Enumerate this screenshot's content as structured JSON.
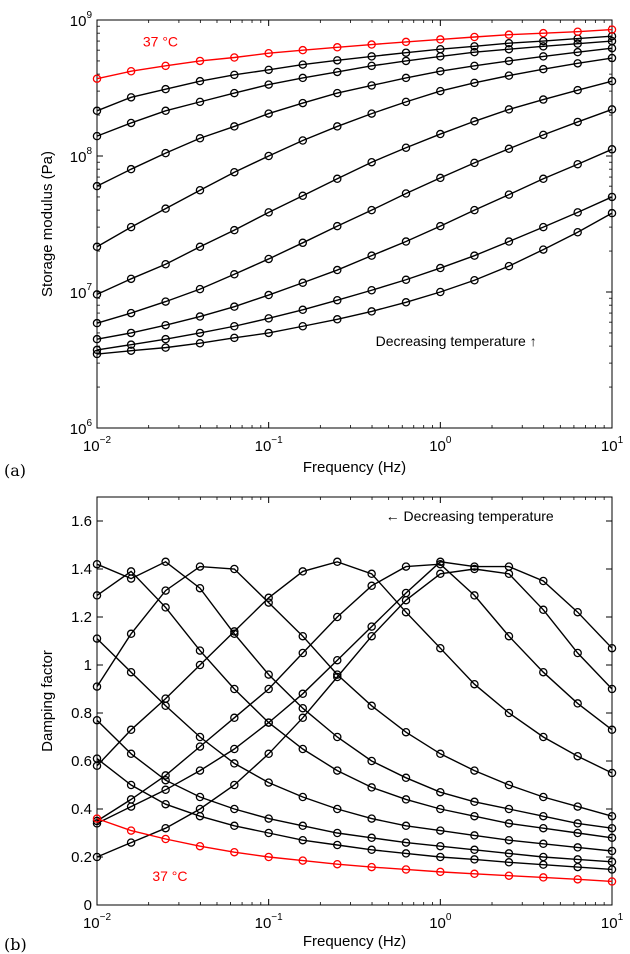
{
  "chart_data": [
    {
      "panel_label": "(a)",
      "type": "line",
      "xlabel": "Frequency (Hz)",
      "ylabel": "Storage modulus (Pa)",
      "xscale": "log",
      "yscale": "log",
      "xlim": [
        0.01,
        10
      ],
      "ylim": [
        1000000,
        1000000000
      ],
      "x_ticks": [
        {
          "value": 0.01,
          "base": "10",
          "exp": "−2"
        },
        {
          "value": 0.1,
          "base": "10",
          "exp": "−1"
        },
        {
          "value": 1,
          "base": "10",
          "exp": "0"
        },
        {
          "value": 10,
          "base": "10",
          "exp": "1"
        }
      ],
      "y_ticks": [
        {
          "value": 1000000,
          "base": "10",
          "exp": "6"
        },
        {
          "value": 10000000,
          "base": "10",
          "exp": "7"
        },
        {
          "value": 100000000,
          "base": "10",
          "exp": "8"
        },
        {
          "value": 1000000000,
          "base": "10",
          "exp": "9"
        }
      ],
      "grid": false,
      "marker": "circle",
      "x": [
        0.01,
        0.0158,
        0.0251,
        0.0398,
        0.0631,
        0.1,
        0.158,
        0.251,
        0.398,
        0.631,
        1.0,
        1.58,
        2.51,
        3.98,
        6.31,
        10.0
      ],
      "series": [
        {
          "color": "#ff0000",
          "values": [
            370000000.0,
            420000000.0,
            460000000.0,
            500000000.0,
            530000000.0,
            570000000.0,
            600000000.0,
            630000000.0,
            660000000.0,
            690000000.0,
            720000000.0,
            750000000.0,
            780000000.0,
            800000000.0,
            820000000.0,
            850000000.0
          ]
        },
        {
          "color": "#000000",
          "values": [
            215000000.0,
            270000000.0,
            310000000.0,
            355000000.0,
            395000000.0,
            430000000.0,
            470000000.0,
            505000000.0,
            540000000.0,
            575000000.0,
            610000000.0,
            640000000.0,
            675000000.0,
            700000000.0,
            730000000.0,
            760000000.0
          ]
        },
        {
          "color": "#000000",
          "values": [
            140000000.0,
            175000000.0,
            215000000.0,
            250000000.0,
            290000000.0,
            335000000.0,
            375000000.0,
            415000000.0,
            460000000.0,
            500000000.0,
            540000000.0,
            580000000.0,
            610000000.0,
            640000000.0,
            670000000.0,
            700000000.0
          ]
        },
        {
          "color": "#000000",
          "values": [
            60000000.0,
            80000000.0,
            105000000.0,
            135000000.0,
            165000000.0,
            205000000.0,
            245000000.0,
            290000000.0,
            330000000.0,
            375000000.0,
            420000000.0,
            460000000.0,
            500000000.0,
            540000000.0,
            580000000.0,
            620000000.0
          ]
        },
        {
          "color": "#000000",
          "values": [
            21500000.0,
            30000000.0,
            41000000.0,
            56000000.0,
            76000000.0,
            100000000.0,
            130000000.0,
            165000000.0,
            205000000.0,
            250000000.0,
            300000000.0,
            345000000.0,
            390000000.0,
            435000000.0,
            480000000.0,
            525000000.0
          ]
        },
        {
          "color": "#000000",
          "values": [
            9600000.0,
            12500000.0,
            16000000.0,
            21500000.0,
            28500000.0,
            38500000.0,
            51000000.0,
            68000000.0,
            90000000.0,
            115000000.0,
            145000000.0,
            180000000.0,
            220000000.0,
            260000000.0,
            305000000.0,
            355000000.0
          ]
        },
        {
          "color": "#000000",
          "values": [
            5900000.0,
            7000000.0,
            8500000.0,
            10500000.0,
            13500000.0,
            17500000.0,
            23000000.0,
            30500000.0,
            40000000.0,
            53000000.0,
            69000000.0,
            89000000.0,
            113000000.0,
            143000000.0,
            178000000.0,
            220000000.0
          ]
        },
        {
          "color": "#000000",
          "values": [
            4500000.0,
            5000000.0,
            5700000.0,
            6600000.0,
            7800000.0,
            9500000.0,
            11700000.0,
            14500000.0,
            18500000.0,
            23500000.0,
            30500000.0,
            40000000.0,
            52000000.0,
            68000000.0,
            87000000.0,
            112000000.0
          ]
        },
        {
          "color": "#000000",
          "values": [
            3750000.0,
            4100000.0,
            4500000.0,
            5000000.0,
            5600000.0,
            6400000.0,
            7400000.0,
            8700000.0,
            10300000.0,
            12300000.0,
            15000000.0,
            18500000.0,
            23500000.0,
            30000000.0,
            38500000.0,
            50000000.0
          ]
        },
        {
          "color": "#000000",
          "values": [
            3500000.0,
            3700000.0,
            3900000.0,
            4200000.0,
            4600000.0,
            5000000.0,
            5600000.0,
            6300000.0,
            7200000.0,
            8400000.0,
            10000000.0,
            12200000.0,
            15500000.0,
            20500000.0,
            27500000.0,
            38000000.0
          ]
        }
      ],
      "annotations": [
        {
          "text": "37 °C",
          "color": "#ff0000",
          "x": 0.0185,
          "y": 640000000.0
        },
        {
          "text": "Decreasing temperature ↑",
          "color": "#000000",
          "x": 0.42,
          "y": 4000000.0
        }
      ]
    },
    {
      "panel_label": "(b)",
      "type": "line",
      "xlabel": "Frequency (Hz)",
      "ylabel": "Damping factor",
      "xscale": "log",
      "yscale": "linear",
      "xlim": [
        0.01,
        10
      ],
      "ylim": [
        0,
        1.7
      ],
      "x_ticks": [
        {
          "value": 0.01,
          "base": "10",
          "exp": "−2"
        },
        {
          "value": 0.1,
          "base": "10",
          "exp": "−1"
        },
        {
          "value": 1,
          "base": "10",
          "exp": "0"
        },
        {
          "value": 10,
          "base": "10",
          "exp": "1"
        }
      ],
      "y_ticks": [
        {
          "value": 0,
          "label": "0"
        },
        {
          "value": 0.2,
          "label": "0.2"
        },
        {
          "value": 0.4,
          "label": "0.4"
        },
        {
          "value": 0.6,
          "label": "0.6"
        },
        {
          "value": 0.8,
          "label": "0.8"
        },
        {
          "value": 1.0,
          "label": "1"
        },
        {
          "value": 1.2,
          "label": "1.2"
        },
        {
          "value": 1.4,
          "label": "1.4"
        },
        {
          "value": 1.6,
          "label": "1.6"
        }
      ],
      "grid": false,
      "marker": "circle",
      "x": [
        0.01,
        0.0158,
        0.0251,
        0.0398,
        0.0631,
        0.1,
        0.158,
        0.251,
        0.398,
        0.631,
        1.0,
        1.58,
        2.51,
        3.98,
        6.31,
        10.0
      ],
      "series": [
        {
          "color": "#ff0000",
          "values": [
            0.36,
            0.31,
            0.275,
            0.245,
            0.22,
            0.2,
            0.185,
            0.17,
            0.158,
            0.148,
            0.138,
            0.13,
            0.122,
            0.115,
            0.107,
            0.098
          ]
        },
        {
          "color": "#000000",
          "values": [
            0.61,
            0.5,
            0.42,
            0.37,
            0.33,
            0.3,
            0.27,
            0.25,
            0.23,
            0.215,
            0.2,
            0.19,
            0.178,
            0.168,
            0.158,
            0.148
          ]
        },
        {
          "color": "#000000",
          "values": [
            0.77,
            0.63,
            0.52,
            0.45,
            0.4,
            0.36,
            0.33,
            0.3,
            0.28,
            0.26,
            0.245,
            0.23,
            0.215,
            0.2,
            0.19,
            0.18
          ]
        },
        {
          "color": "#000000",
          "values": [
            1.11,
            0.97,
            0.83,
            0.7,
            0.59,
            0.51,
            0.45,
            0.4,
            0.36,
            0.33,
            0.31,
            0.29,
            0.27,
            0.255,
            0.24,
            0.225
          ]
        },
        {
          "color": "#000000",
          "values": [
            1.29,
            1.39,
            1.24,
            1.06,
            0.9,
            0.76,
            0.65,
            0.56,
            0.49,
            0.44,
            0.4,
            0.37,
            0.34,
            0.32,
            0.3,
            0.28
          ]
        },
        {
          "color": "#000000",
          "values": [
            1.42,
            1.36,
            1.43,
            1.32,
            1.13,
            0.96,
            0.82,
            0.7,
            0.6,
            0.53,
            0.47,
            0.43,
            0.4,
            0.37,
            0.34,
            0.32
          ]
        },
        {
          "color": "#000000",
          "values": [
            0.91,
            1.13,
            1.31,
            1.41,
            1.4,
            1.26,
            1.12,
            0.96,
            0.83,
            0.72,
            0.63,
            0.56,
            0.5,
            0.45,
            0.41,
            0.37
          ]
        },
        {
          "color": "#000000",
          "values": [
            0.58,
            0.73,
            0.86,
            1.0,
            1.14,
            1.28,
            1.39,
            1.43,
            1.38,
            1.22,
            1.07,
            0.92,
            0.8,
            0.7,
            0.62,
            0.55
          ]
        },
        {
          "color": "#000000",
          "values": [
            0.35,
            0.44,
            0.54,
            0.66,
            0.78,
            0.9,
            1.05,
            1.2,
            1.33,
            1.41,
            1.42,
            1.29,
            1.12,
            0.97,
            0.84,
            0.73
          ]
        },
        {
          "color": "#000000",
          "values": [
            0.2,
            0.26,
            0.32,
            0.4,
            0.5,
            0.63,
            0.78,
            0.95,
            1.12,
            1.27,
            1.38,
            1.4,
            1.38,
            1.23,
            1.05,
            0.9
          ]
        },
        {
          "color": "#000000",
          "values": [
            0.34,
            0.41,
            0.48,
            0.56,
            0.65,
            0.76,
            0.88,
            1.02,
            1.16,
            1.3,
            1.43,
            1.41,
            1.41,
            1.35,
            1.22,
            1.07
          ]
        }
      ],
      "annotations": [
        {
          "text": "← Decreasing temperature",
          "color": "#000000",
          "x": 0.48,
          "y": 1.6
        },
        {
          "text": "37 °C",
          "color": "#ff0000",
          "x": 0.021,
          "y": 0.1
        }
      ]
    }
  ]
}
